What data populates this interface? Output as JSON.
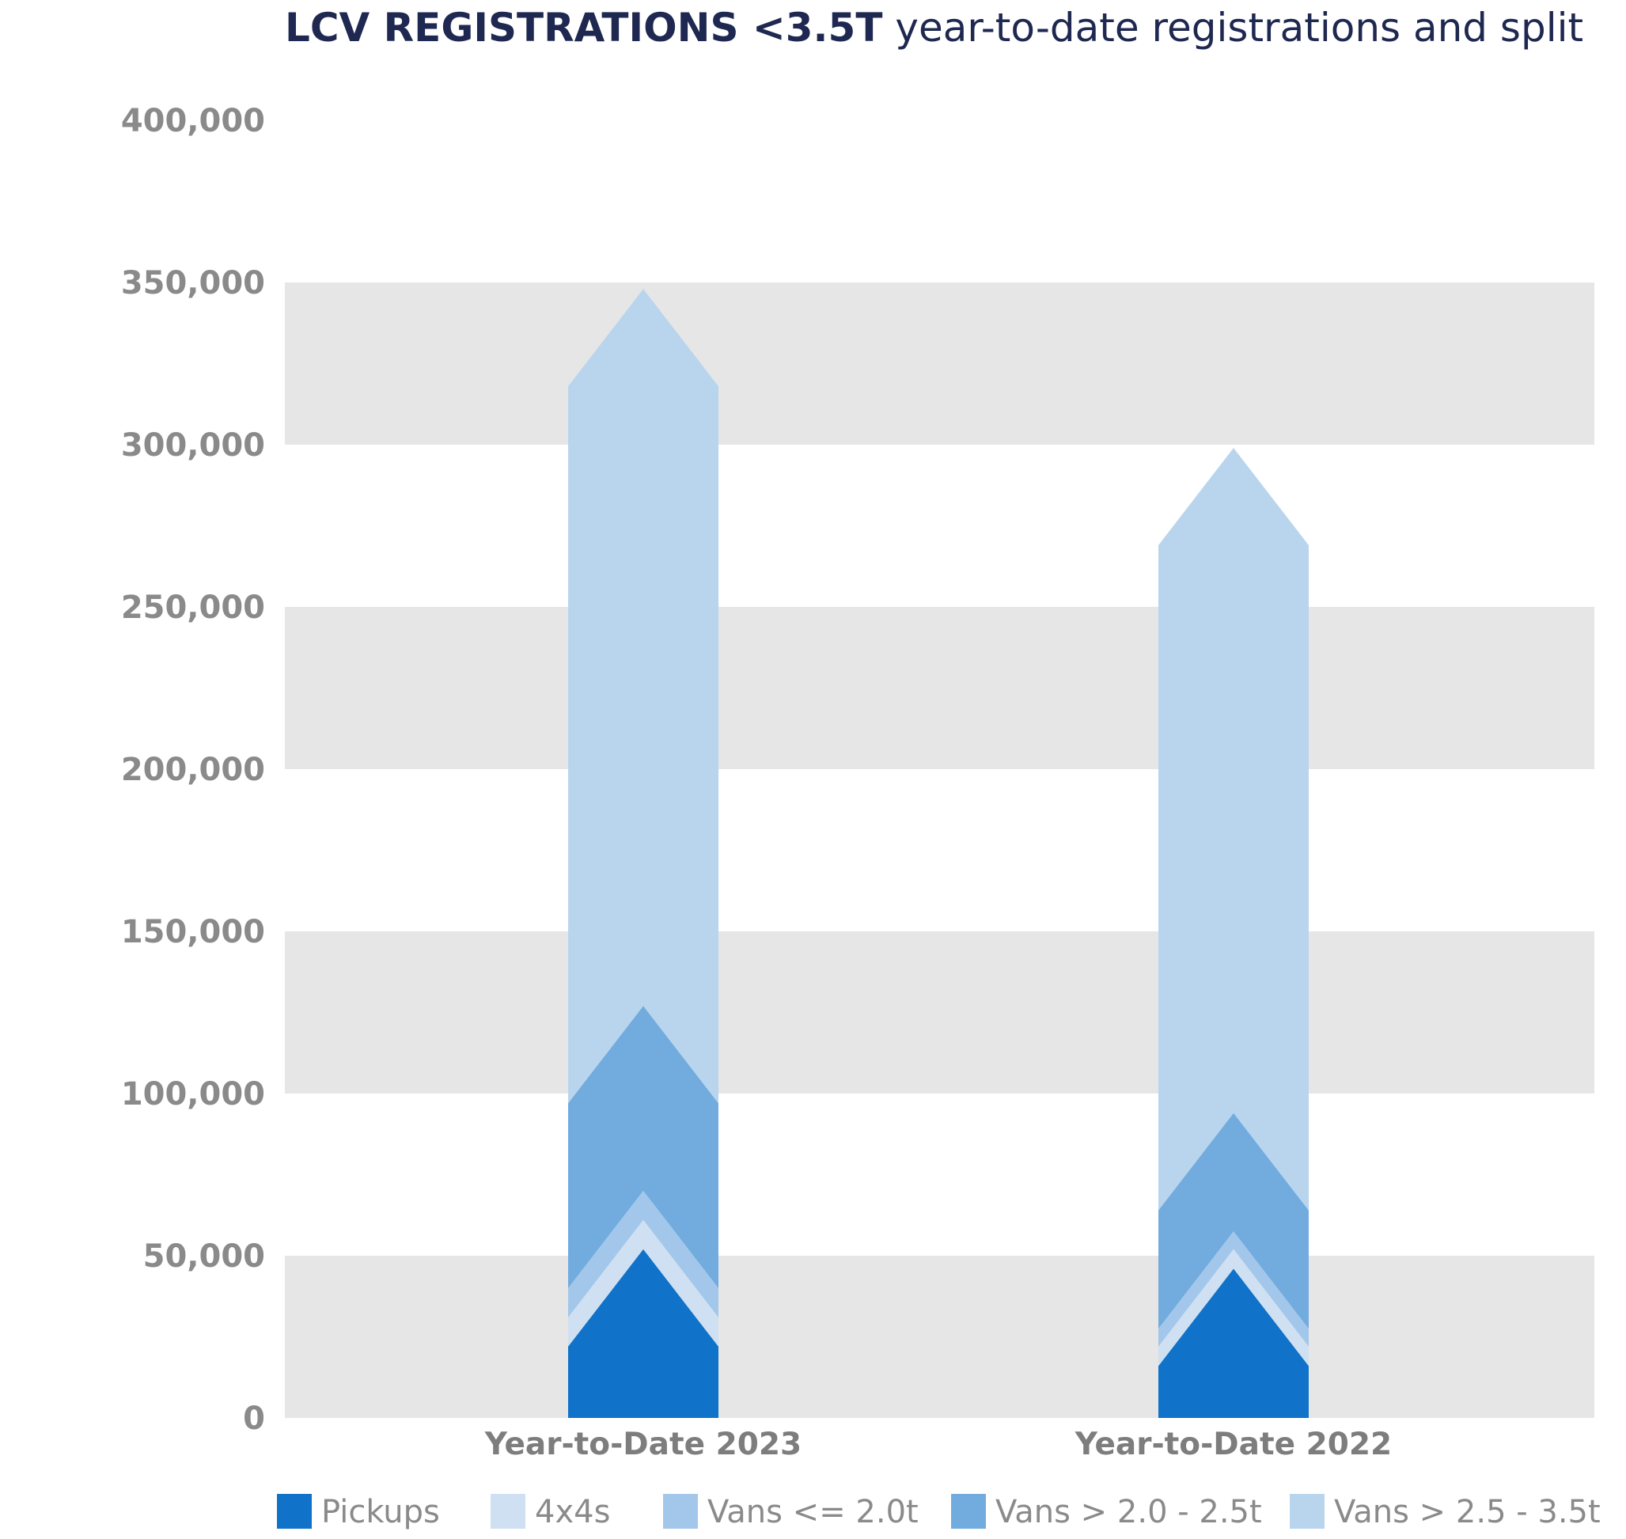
{
  "chart_data": {
    "type": "bar",
    "stacked": true,
    "title": "LCV REGISTRATIONS <3.5T",
    "subtitle": "year-to-date registrations and split",
    "categories": [
      "Year-to-Date 2023",
      "Year-to-Date 2022"
    ],
    "series": [
      {
        "name": "Pickups",
        "color": "#1072c8",
        "values": [
          22000,
          16000
        ]
      },
      {
        "name": "4x4s",
        "color": "#cfe0f2",
        "values": [
          9000,
          6000
        ]
      },
      {
        "name": "Vans <= 2.0t",
        "color": "#a3c7ea",
        "values": [
          9000,
          5500
        ]
      },
      {
        "name": "Vans > 2.0 - 2.5t",
        "color": "#72acde",
        "values": [
          57000,
          36500
        ]
      },
      {
        "name": "Vans > 2.5 - 3.5t",
        "color": "#b9d5ee",
        "values": [
          221000,
          205000
        ]
      }
    ],
    "ylim": [
      0,
      400000
    ],
    "yticks": [
      0,
      50000,
      100000,
      150000,
      200000,
      250000,
      300000,
      350000,
      400000
    ],
    "ytick_labels": [
      "0",
      "50,000",
      "100,000",
      "150,000",
      "200,000",
      "250,000",
      "300,000",
      "350,000",
      "400,000"
    ],
    "grid": "alternating horizontal bands",
    "band_color": "#e6e6e6",
    "legend": "bottom"
  }
}
